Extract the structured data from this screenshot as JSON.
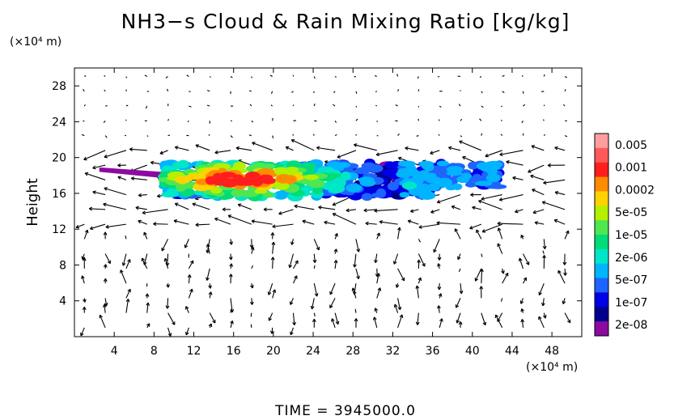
{
  "chart_data": {
    "type": "heatmap",
    "title": "NH3−s Cloud & Rain Mixing Ratio [kg/kg]",
    "ylabel": "Height",
    "xunit": "(×10⁴ m)",
    "yunit": "(×10⁴ m)",
    "x_ticks": [
      4,
      8,
      12,
      16,
      20,
      24,
      28,
      32,
      36,
      40,
      44,
      48
    ],
    "y_ticks": [
      4,
      8,
      12,
      16,
      20,
      24,
      28
    ],
    "xlim": [
      0,
      51
    ],
    "ylim": [
      0,
      30
    ],
    "grid": false,
    "colorbar": {
      "labels": [
        "0.005",
        "0.001",
        "0.0002",
        "5e-05",
        "1e-05",
        "2e-06",
        "5e-07",
        "1e-07",
        "2e-08"
      ],
      "colors": [
        "#ff9e9e",
        "#ff5a5a",
        "#ff1e1e",
        "#ff8c00",
        "#ffd200",
        "#b4f000",
        "#50e650",
        "#00dc78",
        "#00e6c8",
        "#00b4ff",
        "#1e64ff",
        "#0000e6",
        "#00008c",
        "#8c0aa0"
      ]
    },
    "footer": "TIME = 3945000.0"
  }
}
